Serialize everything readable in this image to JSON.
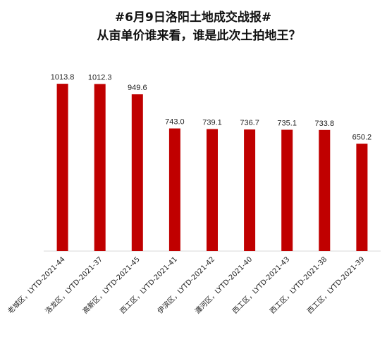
{
  "chart_data": {
    "type": "bar",
    "title": "#6月9日洛阳土地成交战报#",
    "subtitle": "从亩单价谁来看，谁是此次土拍地王？",
    "xlabel": "",
    "ylabel": "",
    "ylim": [
      0,
      1100
    ],
    "grid": false,
    "categories": [
      "老城区，LYTD-2021-44",
      "洛龙区，LYTD-2021-37",
      "高新区，LYTD-2021-45",
      "西工区，LYTD-2021-41",
      "伊滨区，LYTD-2021-42",
      "瀍河区，LYTD-2021-40",
      "西工区，LYTD-2021-43",
      "西工区，LYTD-2021-38",
      "西工区，LYTD-2021-39"
    ],
    "values": [
      1013.8,
      1012.3,
      949.6,
      743.0,
      739.1,
      736.7,
      735.1,
      733.8,
      650.2
    ],
    "value_labels": [
      "1013.8",
      "1012.3",
      "949.6",
      "743.0",
      "739.1",
      "736.7",
      "735.1",
      "733.8",
      "650.2"
    ],
    "bar_color": "#c00000"
  }
}
